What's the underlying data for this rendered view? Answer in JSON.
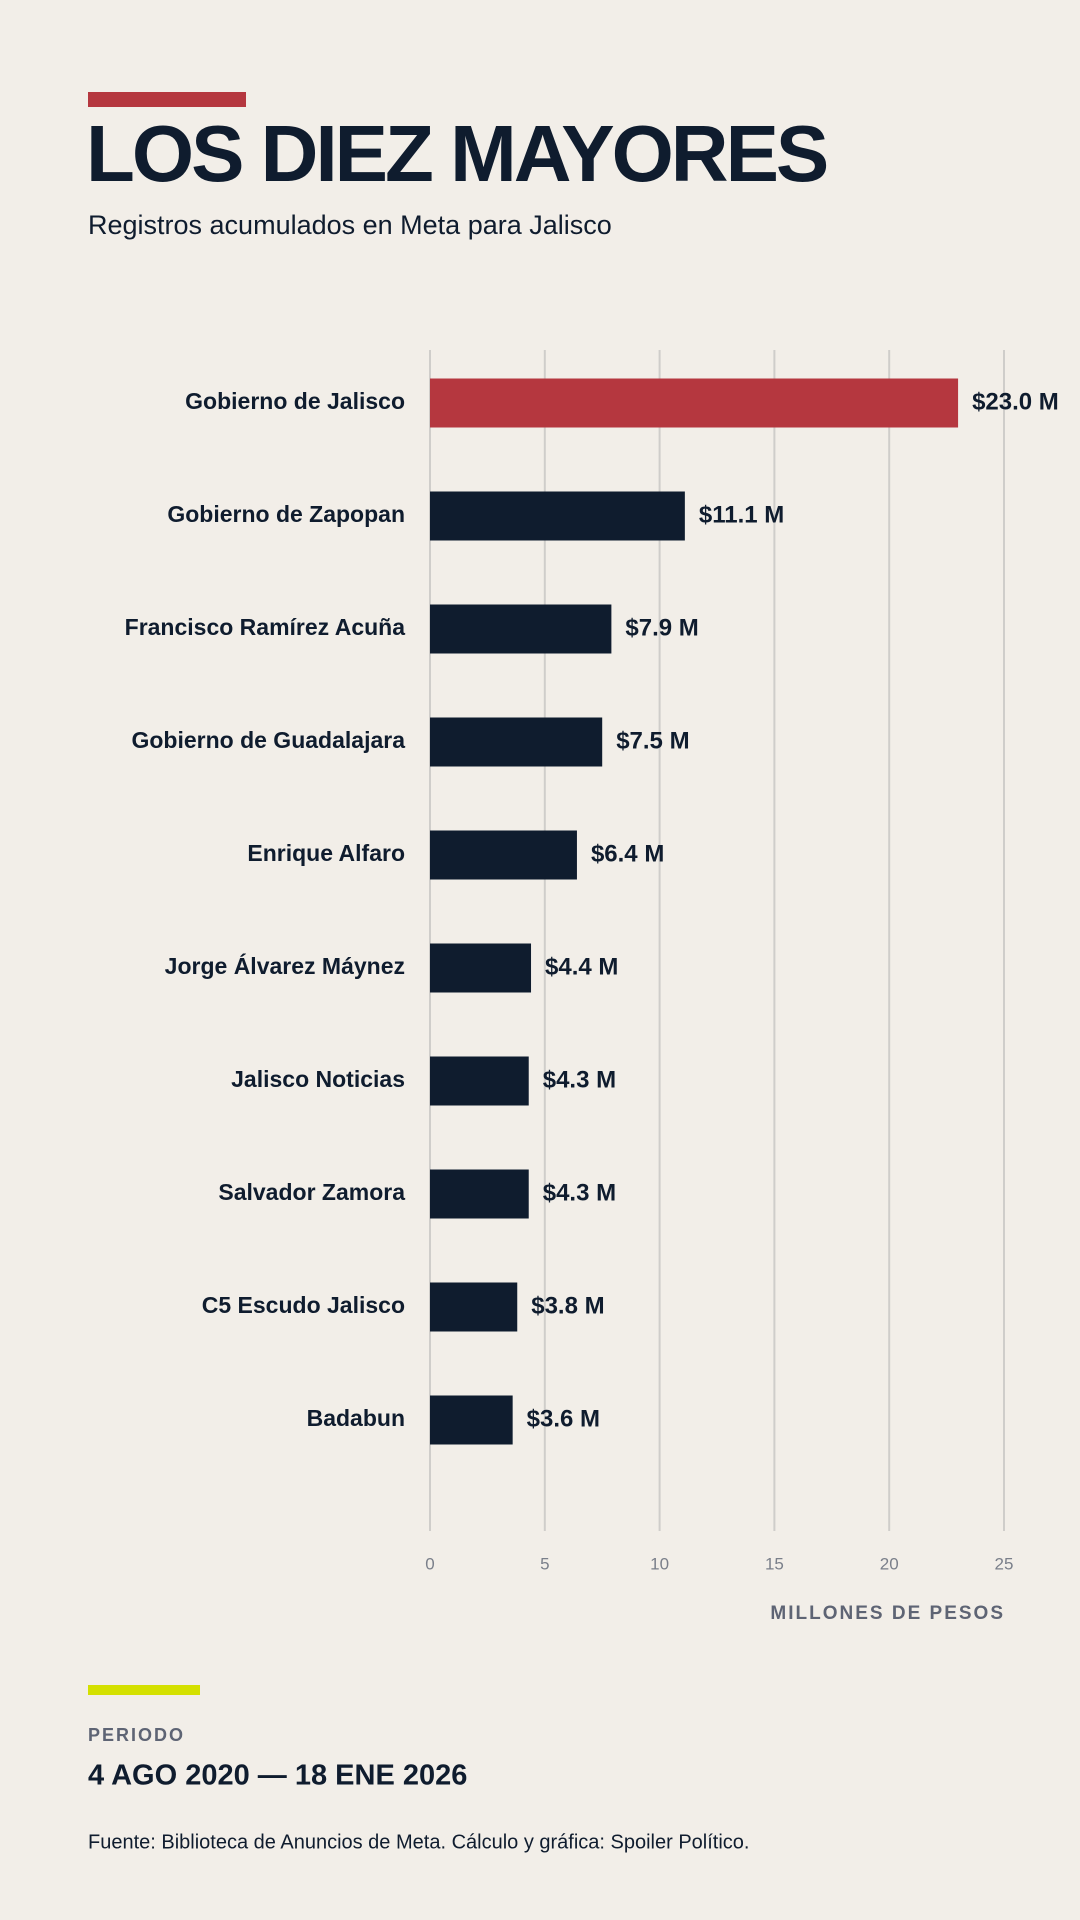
{
  "chart_data": {
    "type": "hbar",
    "title": "LOS DIEZ MAYORES",
    "subtitle": "Registros acumulados en Meta para Jalisco",
    "categories": [
      "Gobierno de Jalisco",
      "Gobierno de Zapopan",
      "Francisco Ramírez Acuña",
      "Gobierno de Guadalajara",
      "Enrique Alfaro",
      "Jorge Álvarez Máynez",
      "Jalisco Noticias",
      "Salvador Zamora",
      "C5 Escudo Jalisco",
      "Badabun"
    ],
    "values": [
      23.0,
      11.1,
      7.9,
      7.5,
      6.4,
      4.4,
      4.3,
      4.3,
      3.8,
      3.6
    ],
    "value_labels": [
      "$23.0 M",
      "$11.1 M",
      "$7.9 M",
      "$7.5 M",
      "$6.4 M",
      "$4.4 M",
      "$4.3 M",
      "$4.3 M",
      "$3.8 M",
      "$3.6 M"
    ],
    "colors": [
      "#b5373f",
      "#0f1c2e",
      "#0f1c2e",
      "#0f1c2e",
      "#0f1c2e",
      "#0f1c2e",
      "#0f1c2e",
      "#0f1c2e",
      "#0f1c2e",
      "#0f1c2e"
    ],
    "xlim": [
      0,
      25
    ],
    "xticks": [
      0,
      5,
      10,
      15,
      20,
      25
    ],
    "grid": true,
    "x_label": "MILLONES DE PESOS"
  },
  "footer": {
    "label": "PERIODO",
    "period": "4 AGO 2020 — 18 ENE 2026",
    "source": "Fuente: Biblioteca de Anuncios de Meta. Cálculo y gráfica: Spoiler Político."
  }
}
